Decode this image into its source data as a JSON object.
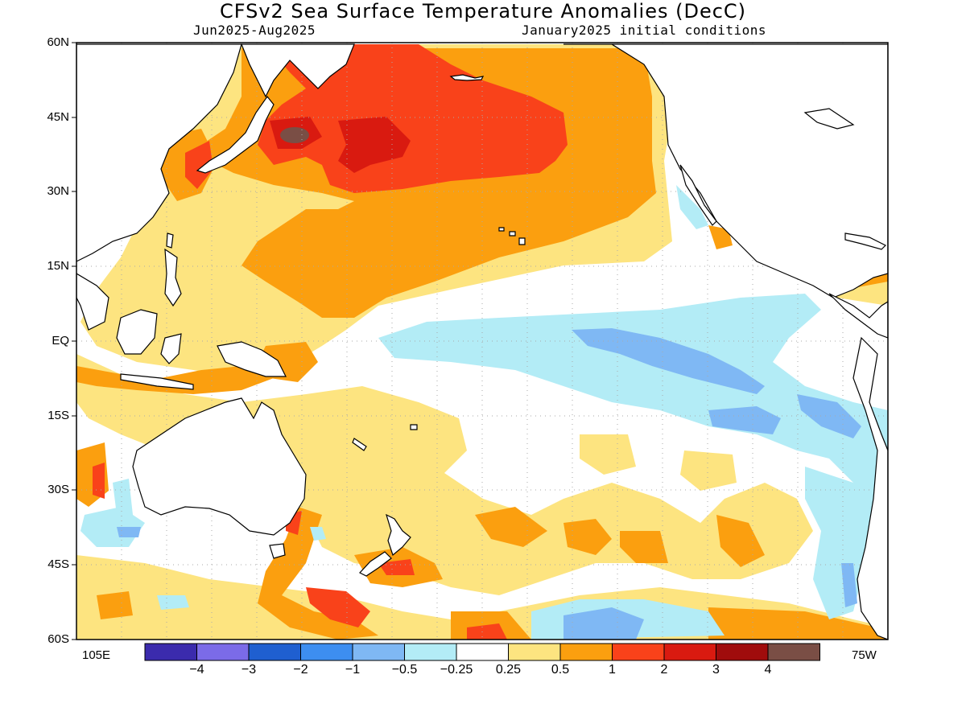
{
  "title": "CFSv2 Sea Surface Temperature Anomalies (DecC)",
  "period": "Jun2025-Aug2025",
  "init": "January2025 initial conditions",
  "lat_labels": [
    "60N",
    "45N",
    "30N",
    "15N",
    "EQ",
    "15S",
    "30S",
    "45S",
    "60S"
  ],
  "lon_left": "105E",
  "lon_right": "75W",
  "colorbar": {
    "ticks": [
      "-4",
      "-3",
      "-2",
      "-1",
      "-0.5",
      "-0.25",
      "0.25",
      "0.5",
      "1",
      "2",
      "3",
      "4"
    ],
    "colors": [
      "#3b2bad",
      "#7b6be8",
      "#1f5fd0",
      "#3d8ef0",
      "#7fb8f4",
      "#b3ecf6",
      "#ffffff",
      "#fde480",
      "#fb9f0f",
      "#f9421a",
      "#d91a10",
      "#a00c0c",
      "#7a4e45"
    ]
  },
  "map": {
    "lat_range": [
      -60,
      60
    ],
    "lon_range_deg_east": [
      105,
      285
    ],
    "land_color": "#ffffff",
    "grid": true
  }
}
